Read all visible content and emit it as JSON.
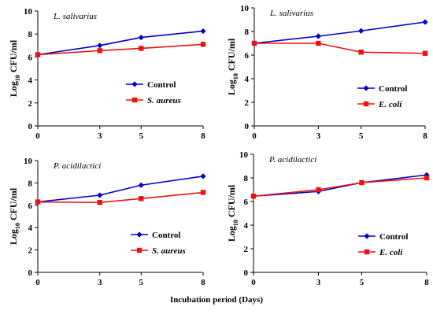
{
  "figure": {
    "xlabel": "Incubation period (Days)"
  },
  "chart_data": [
    {
      "type": "line",
      "title": "L. salivarius",
      "ylabel_main": "Log",
      "ylabel_sub": "10",
      "ylabel_rest": " CFU/ml",
      "x": [
        0,
        3,
        5,
        8
      ],
      "xticks": [
        "0",
        "3",
        "5",
        "8"
      ],
      "ylim": [
        0,
        10
      ],
      "yticks": [
        0,
        2,
        4,
        6,
        8,
        10
      ],
      "legend_position": "bottom-right",
      "series": [
        {
          "name": "Control",
          "color": "#0000cc",
          "marker": "diamond",
          "values": [
            6.2,
            7.0,
            7.7,
            8.25
          ]
        },
        {
          "name": "S. aureus",
          "name_italic": true,
          "color": "#ee1111",
          "marker": "square",
          "values": [
            6.2,
            6.55,
            6.75,
            7.1
          ]
        }
      ]
    },
    {
      "type": "line",
      "title": "L. salivarius",
      "ylabel_main": "Log",
      "ylabel_sub": "10",
      "ylabel_rest": " CFU/ml",
      "x": [
        0,
        3,
        5,
        8
      ],
      "xticks": [
        "0",
        "3",
        "5",
        "8"
      ],
      "ylim": [
        0,
        10
      ],
      "yticks": [
        0,
        2,
        4,
        6,
        8,
        10
      ],
      "legend_position": "bottom-right",
      "series": [
        {
          "name": "Control",
          "color": "#0000cc",
          "marker": "diamond",
          "values": [
            7.0,
            7.6,
            8.05,
            8.8
          ]
        },
        {
          "name": "E. coli",
          "name_italic": true,
          "color": "#ee1111",
          "marker": "square",
          "values": [
            7.0,
            7.0,
            6.25,
            6.15
          ]
        }
      ]
    },
    {
      "type": "line",
      "title": "P. acidilactici",
      "ylabel_main": "Log",
      "ylabel_sub": "10",
      "ylabel_rest": " CFU/ml",
      "x": [
        0,
        3,
        5,
        8
      ],
      "xticks": [
        "0",
        "3",
        "5",
        "8"
      ],
      "ylim": [
        0,
        10
      ],
      "yticks": [
        0,
        2,
        4,
        6,
        8,
        10
      ],
      "legend_position": "bottom-right",
      "series": [
        {
          "name": "Control",
          "color": "#0000cc",
          "marker": "diamond",
          "values": [
            6.3,
            6.9,
            7.8,
            8.6
          ]
        },
        {
          "name": "S. aureus",
          "name_italic": true,
          "color": "#ee1111",
          "marker": "square",
          "values": [
            6.3,
            6.25,
            6.6,
            7.15
          ]
        }
      ]
    },
    {
      "type": "line",
      "title": "P. acidilactici",
      "ylabel_main": "Log",
      "ylabel_sub": "10",
      "ylabel_rest": " CFU/ml",
      "x": [
        0,
        3,
        5,
        8
      ],
      "xticks": [
        "0",
        "3",
        "5",
        "8"
      ],
      "ylim": [
        0,
        10
      ],
      "yticks": [
        0,
        2,
        4,
        6,
        8,
        10
      ],
      "legend_position": "bottom-right",
      "series": [
        {
          "name": "Control",
          "color": "#0000cc",
          "marker": "diamond",
          "values": [
            6.45,
            6.85,
            7.6,
            8.25
          ]
        },
        {
          "name": "E. coli",
          "name_italic": true,
          "color": "#ee1111",
          "marker": "square",
          "values": [
            6.45,
            7.0,
            7.6,
            8.0
          ]
        }
      ]
    }
  ]
}
